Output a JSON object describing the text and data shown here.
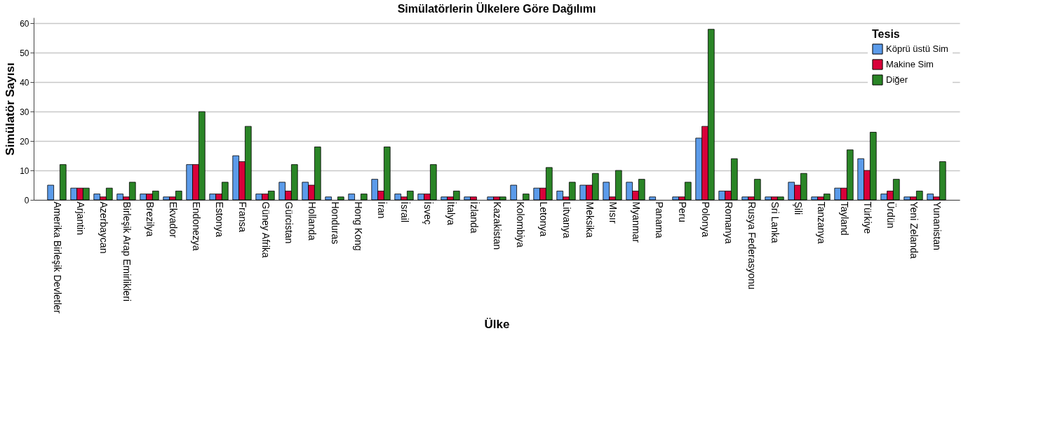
{
  "chart_data": {
    "type": "bar",
    "title": "Simülatörlerin Ülkelere Göre Dağılımı",
    "xlabel": "Ülke",
    "ylabel": "Simülatör Sayısı",
    "legend_title": "Tesis",
    "categories": [
      "Amerika Birleşik Devletler",
      "Arjantin",
      "Azerbaycan",
      "Birleşik Arap Emirlikleri",
      "Brezilya",
      "Ekvador",
      "Endonezya",
      "Estonya",
      "Fransa",
      "Güney Afrika",
      "Gürcistan",
      "Hollanda",
      "Honduras",
      "Hong Kong",
      "İran",
      "İsrail",
      "İsveç",
      "İtalya",
      "İzlanda",
      "Kazakistan",
      "Kolombiya",
      "Letonya",
      "Litvanya",
      "Meksika",
      "Mısır",
      "Myanmar",
      "Panama",
      "Peru",
      "Polonya",
      "Romanya",
      "Rusya Federasyonu",
      "Sri Lanka",
      "Şili",
      "Tanzanya",
      "Tayland",
      "Türkiye",
      "Ürdün",
      "Yeni Zelanda",
      "Yunanistan"
    ],
    "series": [
      {
        "name": "Köprü üstü Sim",
        "color": "#5b9bea",
        "values": [
          5,
          4,
          2,
          2,
          2,
          1,
          12,
          2,
          15,
          2,
          6,
          6,
          1,
          2,
          7,
          2,
          2,
          1,
          1,
          1,
          5,
          4,
          3,
          5,
          6,
          6,
          1,
          1,
          21,
          3,
          1,
          1,
          6,
          1,
          4,
          14,
          2,
          1,
          2
        ]
      },
      {
        "name": "Makine Sim",
        "color": "#d9003a",
        "values": [
          null,
          4,
          1,
          1,
          2,
          1,
          12,
          2,
          13,
          2,
          3,
          5,
          null,
          null,
          3,
          1,
          2,
          1,
          1,
          1,
          null,
          4,
          1,
          5,
          1,
          3,
          null,
          1,
          25,
          3,
          1,
          1,
          5,
          1,
          4,
          10,
          3,
          1,
          1
        ]
      },
      {
        "name": "Diğer",
        "color": "#2a8526",
        "values": [
          12,
          4,
          4,
          6,
          3,
          3,
          30,
          6,
          25,
          3,
          12,
          18,
          1,
          2,
          18,
          3,
          12,
          3,
          null,
          1,
          2,
          11,
          6,
          9,
          10,
          7,
          null,
          6,
          58,
          14,
          7,
          1,
          9,
          2,
          17,
          23,
          7,
          3,
          13
        ]
      }
    ],
    "ylim": [
      0,
      62
    ],
    "yticks": [
      0,
      10,
      20,
      30,
      40,
      50,
      60
    ],
    "grid": "y",
    "legend": "top right"
  }
}
